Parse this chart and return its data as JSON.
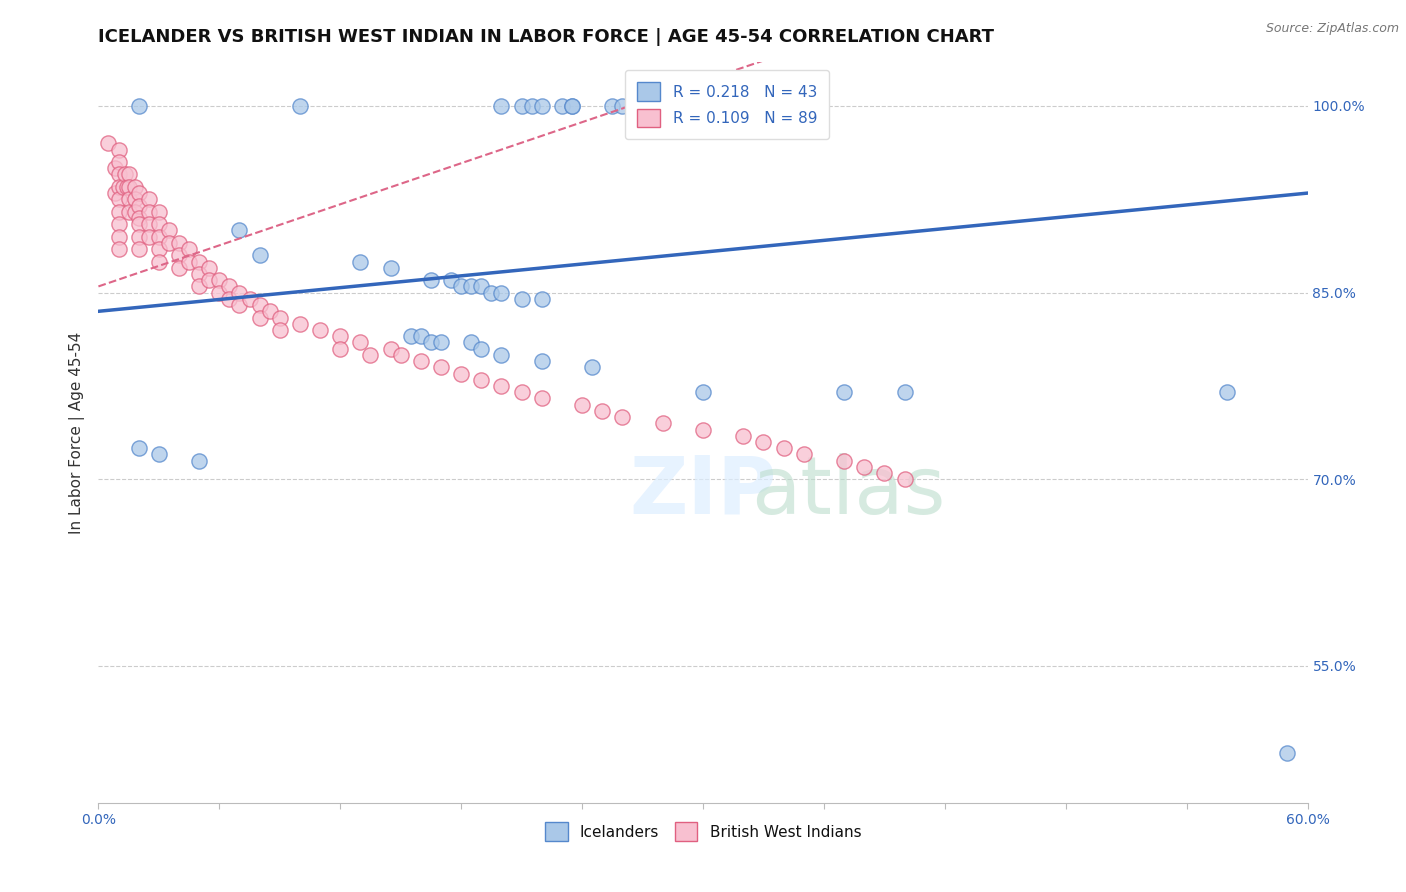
{
  "title": "ICELANDER VS BRITISH WEST INDIAN IN LABOR FORCE | AGE 45-54 CORRELATION CHART",
  "source": "Source: ZipAtlas.com",
  "ylabel": "In Labor Force | Age 45-54",
  "xlim": [
    0.0,
    0.6
  ],
  "ylim": [
    0.44,
    1.035
  ],
  "xticks": [
    0.0,
    0.06,
    0.12,
    0.18,
    0.24,
    0.3,
    0.36,
    0.42,
    0.48,
    0.54,
    0.6
  ],
  "xticklabels": [
    "0.0%",
    "",
    "",
    "",
    "",
    "",
    "",
    "",
    "",
    "",
    "60.0%"
  ],
  "ytick_positions": [
    0.55,
    0.7,
    0.85,
    1.0
  ],
  "yticklabels": [
    "55.0%",
    "70.0%",
    "85.0%",
    "100.0%"
  ],
  "blue_color": "#aac8e8",
  "blue_edge_color": "#5588cc",
  "pink_color": "#f8c0d0",
  "pink_edge_color": "#e06080",
  "blue_line_color": "#3366bb",
  "pink_line_color": "#dd6688",
  "grid_color": "#cccccc",
  "legend_R_blue": "R = 0.218",
  "legend_N_blue": "N = 43",
  "legend_R_pink": "R = 0.109",
  "legend_N_pink": "N = 89",
  "legend_label_blue": "Icelanders",
  "legend_label_pink": "British West Indians",
  "blue_x": [
    0.02,
    0.1,
    0.2,
    0.21,
    0.215,
    0.22,
    0.23,
    0.235,
    0.235,
    0.255,
    0.26,
    0.27,
    0.28,
    0.07,
    0.08,
    0.13,
    0.145,
    0.165,
    0.175,
    0.18,
    0.185,
    0.19,
    0.195,
    0.2,
    0.21,
    0.22,
    0.155,
    0.16,
    0.165,
    0.17,
    0.185,
    0.19,
    0.2,
    0.22,
    0.245,
    0.3,
    0.37,
    0.4,
    0.56,
    0.02,
    0.03,
    0.05,
    0.59
  ],
  "blue_y": [
    1.0,
    1.0,
    1.0,
    1.0,
    1.0,
    1.0,
    1.0,
    1.0,
    1.0,
    1.0,
    1.0,
    1.0,
    1.0,
    0.9,
    0.88,
    0.875,
    0.87,
    0.86,
    0.86,
    0.855,
    0.855,
    0.855,
    0.85,
    0.85,
    0.845,
    0.845,
    0.815,
    0.815,
    0.81,
    0.81,
    0.81,
    0.805,
    0.8,
    0.795,
    0.79,
    0.77,
    0.77,
    0.77,
    0.77,
    0.725,
    0.72,
    0.715,
    0.48
  ],
  "pink_x": [
    0.005,
    0.008,
    0.008,
    0.01,
    0.01,
    0.01,
    0.01,
    0.01,
    0.01,
    0.01,
    0.01,
    0.01,
    0.012,
    0.013,
    0.014,
    0.015,
    0.015,
    0.015,
    0.015,
    0.018,
    0.018,
    0.018,
    0.02,
    0.02,
    0.02,
    0.02,
    0.02,
    0.02,
    0.025,
    0.025,
    0.025,
    0.025,
    0.03,
    0.03,
    0.03,
    0.03,
    0.03,
    0.035,
    0.035,
    0.04,
    0.04,
    0.04,
    0.045,
    0.045,
    0.05,
    0.05,
    0.05,
    0.055,
    0.055,
    0.06,
    0.06,
    0.065,
    0.065,
    0.07,
    0.07,
    0.075,
    0.08,
    0.08,
    0.085,
    0.09,
    0.09,
    0.1,
    0.11,
    0.12,
    0.12,
    0.13,
    0.135,
    0.145,
    0.15,
    0.16,
    0.17,
    0.18,
    0.19,
    0.2,
    0.21,
    0.22,
    0.24,
    0.25,
    0.26,
    0.28,
    0.3,
    0.32,
    0.33,
    0.34,
    0.35,
    0.37,
    0.38,
    0.39,
    0.4
  ],
  "pink_y": [
    0.97,
    0.95,
    0.93,
    0.965,
    0.955,
    0.945,
    0.935,
    0.925,
    0.915,
    0.905,
    0.895,
    0.885,
    0.935,
    0.945,
    0.935,
    0.945,
    0.935,
    0.925,
    0.915,
    0.935,
    0.925,
    0.915,
    0.93,
    0.92,
    0.91,
    0.905,
    0.895,
    0.885,
    0.925,
    0.915,
    0.905,
    0.895,
    0.915,
    0.905,
    0.895,
    0.885,
    0.875,
    0.9,
    0.89,
    0.89,
    0.88,
    0.87,
    0.885,
    0.875,
    0.875,
    0.865,
    0.855,
    0.87,
    0.86,
    0.86,
    0.85,
    0.855,
    0.845,
    0.85,
    0.84,
    0.845,
    0.84,
    0.83,
    0.835,
    0.83,
    0.82,
    0.825,
    0.82,
    0.815,
    0.805,
    0.81,
    0.8,
    0.805,
    0.8,
    0.795,
    0.79,
    0.785,
    0.78,
    0.775,
    0.77,
    0.765,
    0.76,
    0.755,
    0.75,
    0.745,
    0.74,
    0.735,
    0.73,
    0.725,
    0.72,
    0.715,
    0.71,
    0.705,
    0.7
  ],
  "title_fontsize": 13,
  "source_fontsize": 9,
  "axis_label_fontsize": 11,
  "tick_fontsize": 10,
  "legend_fontsize": 11,
  "marker_size": 120
}
